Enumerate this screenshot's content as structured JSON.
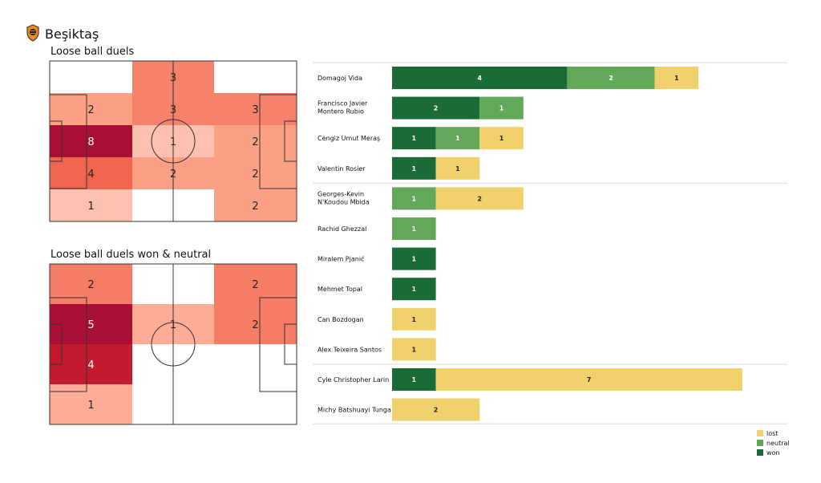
{
  "header": {
    "team_name": "Beşiktaş",
    "logo_icon": "club-crest-icon"
  },
  "colors": {
    "won": "#1a6b35",
    "neutral": "#63a85a",
    "lost": "#f1d16b"
  },
  "chart_data": [
    {
      "type": "heatmap",
      "title": "Loose ball duels",
      "grid": {
        "rows": 5,
        "cols": 3
      },
      "cells": [
        [
          null,
          3,
          null
        ],
        [
          2,
          3,
          3
        ],
        [
          8,
          1,
          2
        ],
        [
          4,
          2,
          2
        ],
        [
          1,
          null,
          2
        ]
      ]
    },
    {
      "type": "heatmap",
      "title": "Loose ball duels won & neutral",
      "grid": {
        "rows": 4,
        "cols": 3
      },
      "cells": [
        [
          2,
          null,
          2
        ],
        [
          5,
          1,
          2
        ],
        [
          4,
          null,
          null
        ],
        [
          1,
          null,
          null
        ]
      ]
    },
    {
      "type": "bar",
      "orientation": "horizontal",
      "stacked": true,
      "categories": [
        "Domagoj Vida",
        "Francisco Javier Montero Rubio",
        "Cengiz Umut Meraş",
        "Valentin Rosier",
        "Georges-Kevin N'Koudou Mbida",
        "Rachid Ghezzal",
        "Miralem Pjanić",
        "Mehmet Topal",
        "Can Bozdogan",
        "Alex  Teixeira Santos",
        "Cyle Christopher Larin",
        "Michy Batshuayi Tunga"
      ],
      "series": [
        {
          "name": "won",
          "values": [
            4,
            2,
            1,
            1,
            0,
            0,
            1,
            1,
            0,
            0,
            1,
            0
          ]
        },
        {
          "name": "neutral",
          "values": [
            2,
            1,
            1,
            0,
            1,
            1,
            0,
            0,
            0,
            0,
            0,
            0
          ]
        },
        {
          "name": "lost",
          "values": [
            1,
            0,
            1,
            1,
            2,
            0,
            0,
            0,
            1,
            1,
            7,
            2
          ]
        }
      ],
      "legend": [
        "lost",
        "neutral",
        "won"
      ],
      "legend_position": "bottom-right"
    }
  ]
}
